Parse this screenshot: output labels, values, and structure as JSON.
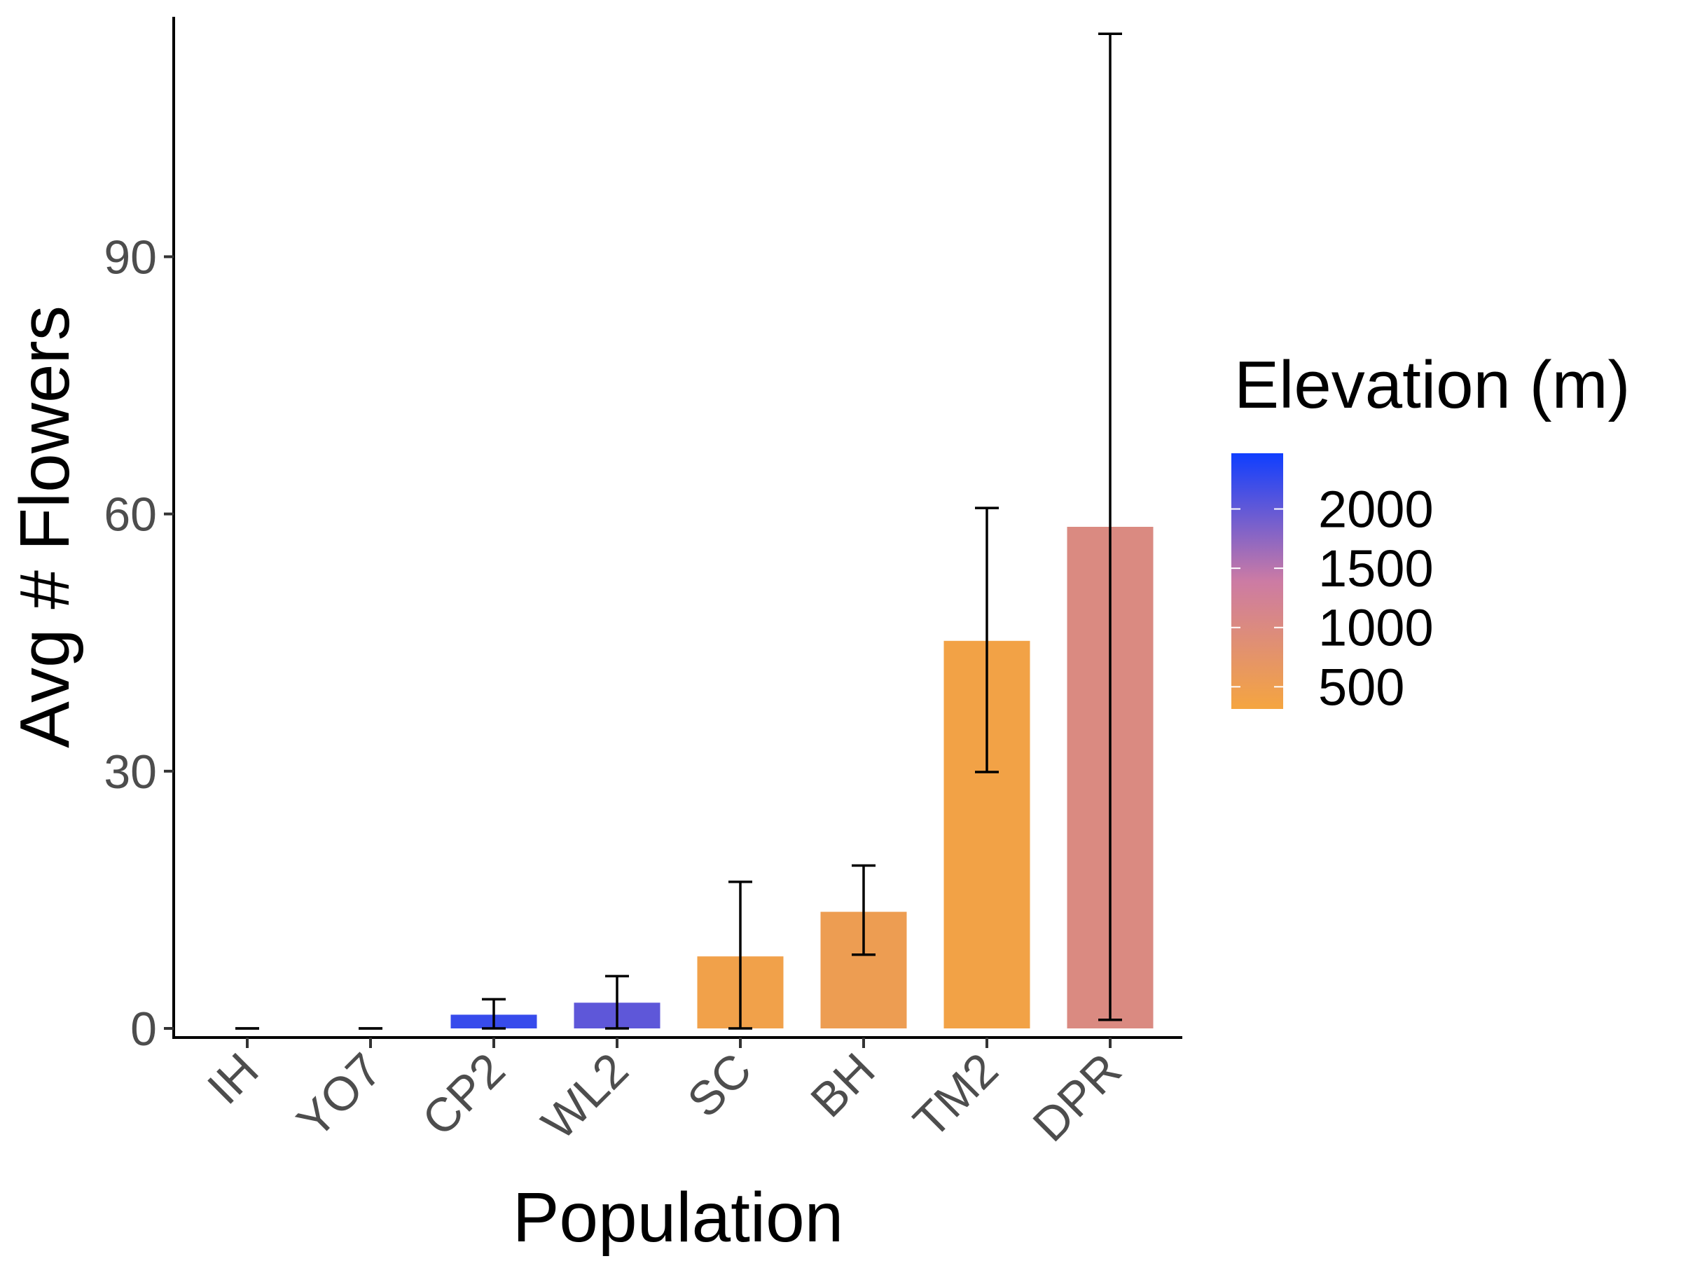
{
  "chart_data": {
    "type": "bar",
    "xlabel": "Population",
    "ylabel": "Avg # Flowers",
    "categories": [
      "IH",
      "YO7",
      "CP2",
      "WL2",
      "SC",
      "BH",
      "TM2",
      "DPR"
    ],
    "values": [
      0,
      0,
      1.6,
      3.0,
      8.4,
      13.6,
      45.2,
      58.5
    ],
    "error_low": [
      0,
      0,
      0,
      0,
      0,
      8.6,
      29.9,
      1.0
    ],
    "error_high": [
      0,
      0,
      3.4,
      6.1,
      17.1,
      19.0,
      60.7,
      116.0
    ],
    "elevation_m": [
      454,
      313,
      2244,
      2020,
      422,
      511,
      379,
      1019
    ],
    "ylim": [
      0,
      117
    ],
    "yticks": [
      0,
      30,
      60,
      90
    ],
    "legend": {
      "title": "Elevation (m)",
      "position": "right",
      "labels": [
        2000,
        1500,
        1000,
        500
      ],
      "range": [
        313,
        2470
      ],
      "low_color": "#F5A540",
      "mid_color": "#CC7BA4",
      "high_color": "#0F3EFF"
    },
    "grid": false
  }
}
